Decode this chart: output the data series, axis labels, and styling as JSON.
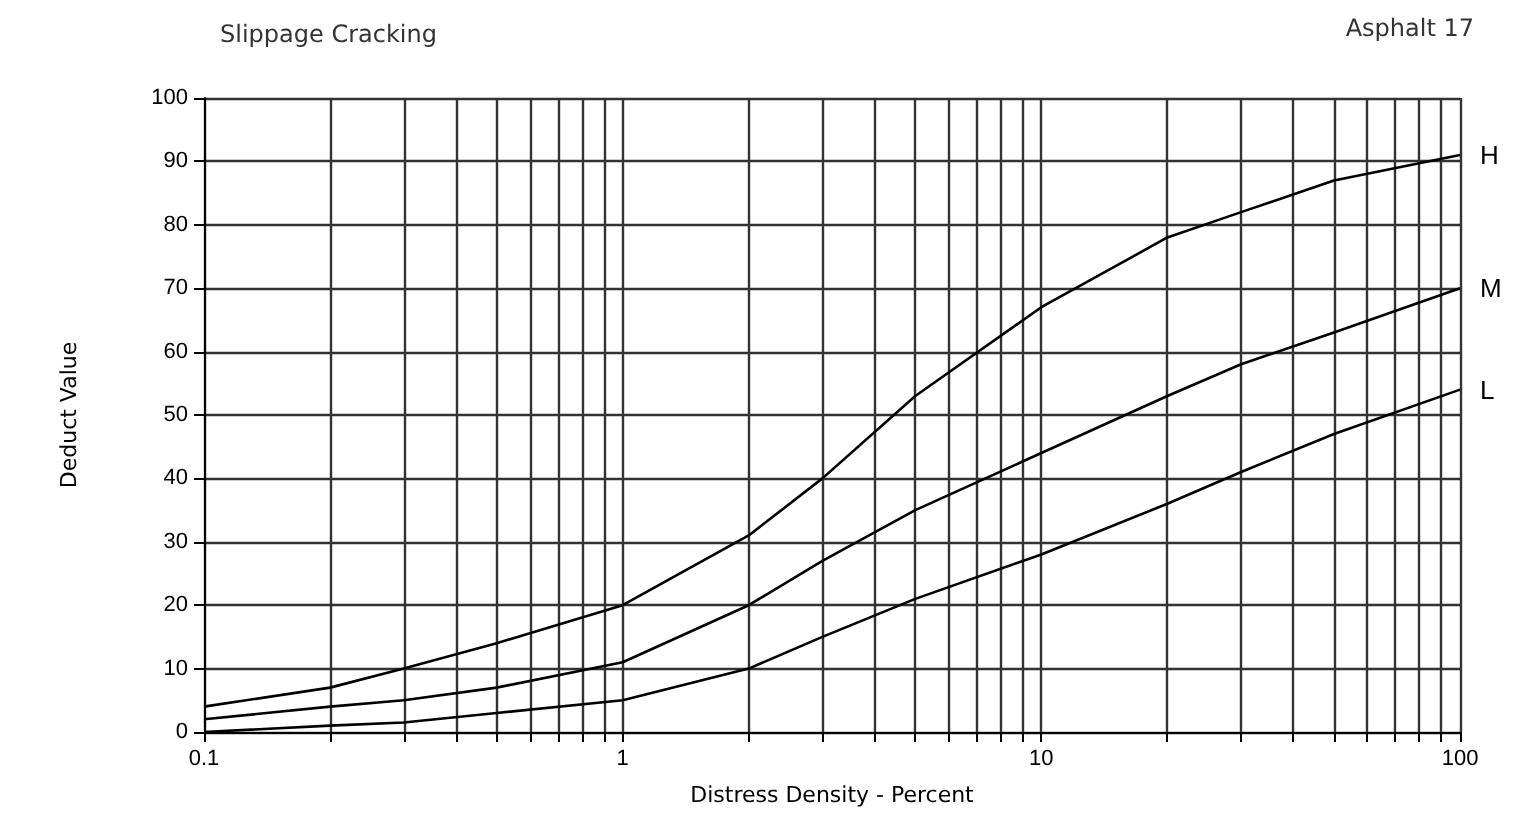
{
  "chart_data": {
    "type": "line",
    "title": "Slippage Cracking",
    "annotations": [
      "Asphalt 17"
    ],
    "xlabel": "Distress Density - Percent",
    "ylabel": "Deduct Value",
    "log": "x",
    "grid": true,
    "marker": "none",
    "line_style": "solid",
    "legend": false,
    "xlim": [
      0.1,
      100
    ],
    "ylim": [
      0,
      100
    ],
    "yticks": [
      0,
      10,
      20,
      30,
      40,
      50,
      60,
      70,
      80,
      90,
      100
    ],
    "xticks": [
      0.1,
      {
        "value": 0.2,
        "label": null
      },
      {
        "value": 0.3,
        "label": null
      },
      {
        "value": 0.4,
        "label": null
      },
      {
        "value": 0.5,
        "label": null
      },
      {
        "value": 0.6,
        "label": null
      },
      {
        "value": 0.7,
        "label": null
      },
      {
        "value": 0.8,
        "label": null
      },
      {
        "value": 0.9,
        "label": null
      },
      1,
      {
        "value": 2,
        "label": null
      },
      {
        "value": 3,
        "label": null
      },
      {
        "value": 4,
        "label": null
      },
      {
        "value": 5,
        "label": null
      },
      {
        "value": 6,
        "label": null
      },
      {
        "value": 7,
        "label": null
      },
      {
        "value": 8,
        "label": null
      },
      {
        "value": 9,
        "label": null
      },
      10,
      {
        "value": 20,
        "label": null
      },
      {
        "value": 30,
        "label": null
      },
      {
        "value": 40,
        "label": null
      },
      {
        "value": 50,
        "label": null
      },
      {
        "value": 60,
        "label": null
      },
      {
        "value": 70,
        "label": null
      },
      {
        "value": 80,
        "label": null
      },
      {
        "value": 90,
        "label": null
      },
      100
    ],
    "x": [
      0.1,
      0.2,
      0.3,
      0.5,
      1,
      2,
      3,
      5,
      10,
      20,
      30,
      50,
      100
    ],
    "series": [
      {
        "name": "H",
        "color": "#000000",
        "values": [
          4,
          7,
          10,
          14,
          20,
          31,
          40,
          53,
          67,
          78,
          82,
          87,
          91
        ]
      },
      {
        "name": "M",
        "color": "#000000",
        "values": [
          2,
          4,
          5,
          7,
          11,
          20,
          27,
          35,
          44,
          53,
          58,
          63,
          70
        ]
      },
      {
        "name": "L",
        "color": "#000000",
        "values": [
          0,
          1,
          1.5,
          3,
          5,
          10,
          15,
          21,
          28,
          36,
          41,
          47,
          54
        ]
      }
    ]
  }
}
